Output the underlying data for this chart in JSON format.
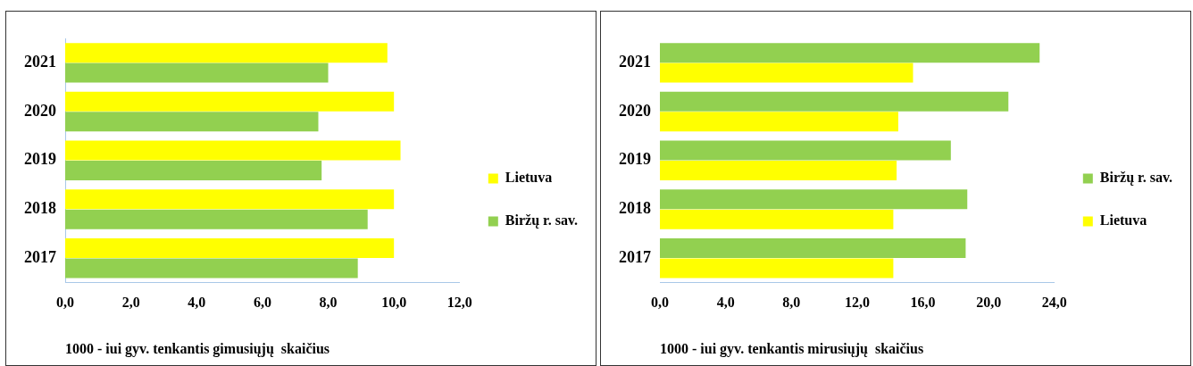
{
  "chart_data": [
    {
      "type": "bar",
      "orientation": "horizontal",
      "categories": [
        "2021",
        "2020",
        "2019",
        "2018",
        "2017"
      ],
      "series": [
        {
          "name": "Lietuva",
          "color": "#ffff00",
          "values": [
            9.8,
            10.0,
            10.2,
            10.0,
            10.0
          ]
        },
        {
          "name": "Biržų r. sav.",
          "color": "#92d050",
          "values": [
            8.0,
            7.7,
            7.8,
            9.2,
            8.9
          ]
        }
      ],
      "xlim": [
        0,
        12
      ],
      "xticks": [
        {
          "value": 0,
          "label": "0,0"
        },
        {
          "value": 2,
          "label": "2,0"
        },
        {
          "value": 4,
          "label": "4,0"
        },
        {
          "value": 6,
          "label": "6,0"
        },
        {
          "value": 8,
          "label": "8,0"
        },
        {
          "value": 10,
          "label": "10,0"
        },
        {
          "value": 12,
          "label": "12,0"
        }
      ],
      "xlabel": "1000 - iui gyv. tenkantis gimusiųjų  skaičius",
      "grid": false,
      "legend": "right"
    },
    {
      "type": "bar",
      "orientation": "horizontal",
      "categories": [
        "2021",
        "2020",
        "2019",
        "2018",
        "2017"
      ],
      "series": [
        {
          "name": "Biržų r. sav.",
          "color": "#92d050",
          "values": [
            23.1,
            21.2,
            17.7,
            18.7,
            18.6
          ]
        },
        {
          "name": "Lietuva",
          "color": "#ffff00",
          "values": [
            15.4,
            14.5,
            14.4,
            14.2,
            14.2
          ]
        }
      ],
      "xlim": [
        0,
        24
      ],
      "xticks": [
        {
          "value": 0,
          "label": "0,0"
        },
        {
          "value": 4,
          "label": "4,0"
        },
        {
          "value": 8,
          "label": "8,0"
        },
        {
          "value": 12,
          "label": "12,0"
        },
        {
          "value": 16,
          "label": "16,0"
        },
        {
          "value": 20,
          "label": "20,0"
        },
        {
          "value": 24,
          "label": "24,0"
        }
      ],
      "xlabel": "1000 - iui gyv. tenkantis mirusiųjų  skaičius",
      "grid": false,
      "legend": "right"
    }
  ]
}
